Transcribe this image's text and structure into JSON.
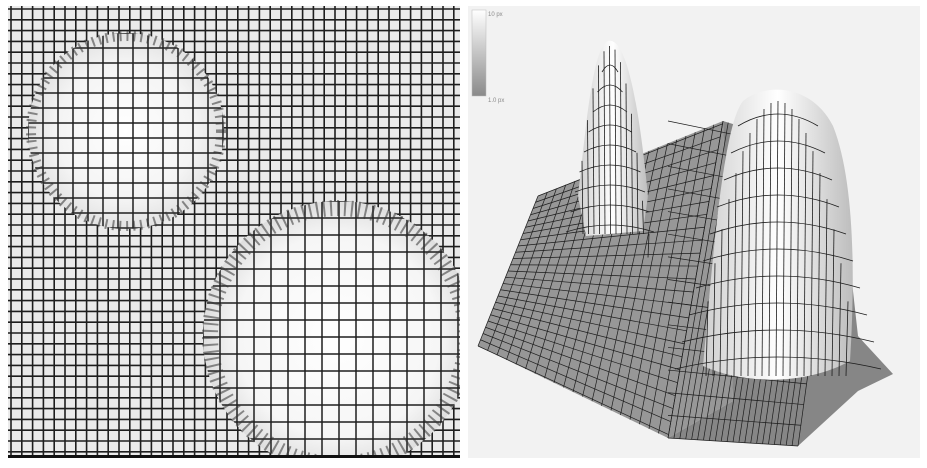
{
  "figure": {
    "left_panel": {
      "description_name": "distorted-grid-pattern",
      "grid_color": "#1f1f1f",
      "background_color": "#ebebeb",
      "highlight_color": "#ffffff"
    },
    "right_panel": {
      "description_name": "3d-wireframe-surface",
      "scale_bar": {
        "top_label": "10 px",
        "bottom_label": "1.0 px"
      },
      "mesh_color": "#1c1c1c",
      "background_color": "#f2f2f2"
    }
  }
}
